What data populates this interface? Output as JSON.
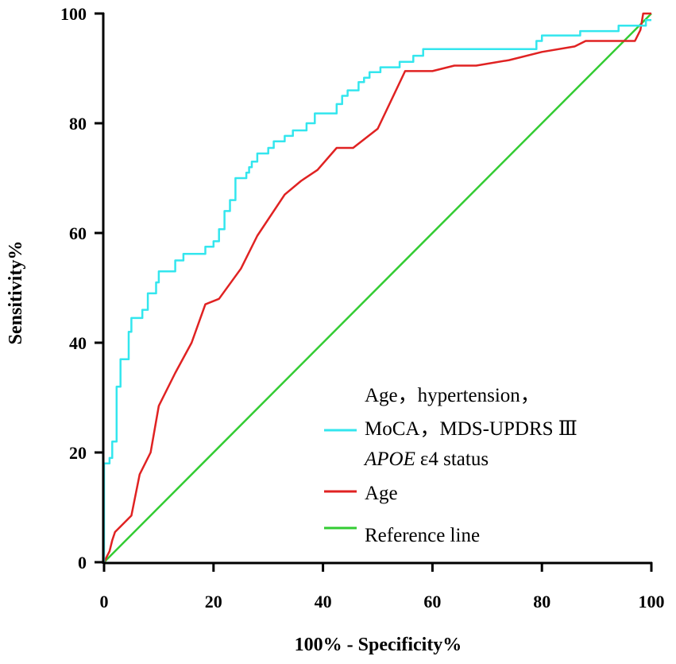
{
  "chart_data": {
    "type": "line",
    "title": "",
    "xlabel": "100% - Specificity%",
    "ylabel": "Sensitivity%",
    "xlim": [
      0,
      100
    ],
    "ylim": [
      0,
      100
    ],
    "xticks": [
      "0",
      "20",
      "40",
      "60",
      "80",
      "100"
    ],
    "yticks": [
      "0",
      "20",
      "40",
      "60",
      "80",
      "100"
    ],
    "grid": false,
    "legend_position": "bottom-right",
    "series": [
      {
        "name": "Age，hypertension，MoCA，MDS-UPDRS Ⅲ APOE ε4 status",
        "legend_lines": [
          "Age，hypertension，",
          "MoCA，MDS-UPDRS Ⅲ",
          "APOE",
          "ε4 status"
        ],
        "color": "#33e6ee",
        "points": [
          [
            0,
            0
          ],
          [
            0,
            18
          ],
          [
            1,
            18
          ],
          [
            1,
            19
          ],
          [
            1.5,
            19
          ],
          [
            1.5,
            22
          ],
          [
            2.3,
            22
          ],
          [
            2.3,
            32
          ],
          [
            3,
            32
          ],
          [
            3,
            37
          ],
          [
            4.5,
            37
          ],
          [
            4.5,
            42
          ],
          [
            5,
            42
          ],
          [
            5,
            44.5
          ],
          [
            7,
            44.5
          ],
          [
            7,
            46
          ],
          [
            8,
            46
          ],
          [
            8,
            49
          ],
          [
            9.5,
            49
          ],
          [
            9.5,
            51
          ],
          [
            10,
            51
          ],
          [
            10,
            53
          ],
          [
            13,
            53
          ],
          [
            13,
            55
          ],
          [
            14.5,
            55
          ],
          [
            14.5,
            56.2
          ],
          [
            18.5,
            56.2
          ],
          [
            18.5,
            57.5
          ],
          [
            20,
            57.5
          ],
          [
            20,
            58.5
          ],
          [
            21,
            58.5
          ],
          [
            21,
            60.7
          ],
          [
            22,
            60.7
          ],
          [
            22,
            64
          ],
          [
            23,
            64
          ],
          [
            23,
            66
          ],
          [
            24,
            66
          ],
          [
            24,
            70
          ],
          [
            26,
            70
          ],
          [
            26,
            71
          ],
          [
            26.5,
            71
          ],
          [
            26.5,
            72
          ],
          [
            27,
            72
          ],
          [
            27,
            73
          ],
          [
            28,
            73
          ],
          [
            28,
            74.5
          ],
          [
            30,
            74.5
          ],
          [
            30,
            75.5
          ],
          [
            31,
            75.5
          ],
          [
            31,
            76.7
          ],
          [
            33,
            76.7
          ],
          [
            33,
            77.7
          ],
          [
            34.5,
            77.7
          ],
          [
            34.5,
            78.7
          ],
          [
            37,
            78.7
          ],
          [
            37,
            80
          ],
          [
            38.5,
            80
          ],
          [
            38.5,
            81.8
          ],
          [
            42.5,
            81.8
          ],
          [
            42.5,
            83.5
          ],
          [
            43.5,
            83.5
          ],
          [
            43.5,
            85
          ],
          [
            44.5,
            85
          ],
          [
            44.5,
            86
          ],
          [
            46.5,
            86
          ],
          [
            46.5,
            87.5
          ],
          [
            47.5,
            87.5
          ],
          [
            47.5,
            88.3
          ],
          [
            48.5,
            88.3
          ],
          [
            48.5,
            89.3
          ],
          [
            50.5,
            89.3
          ],
          [
            50.5,
            90.2
          ],
          [
            54,
            90.2
          ],
          [
            54,
            91.2
          ],
          [
            56.5,
            91.2
          ],
          [
            56.5,
            92.3
          ],
          [
            58.3,
            92.3
          ],
          [
            58.3,
            93.5
          ],
          [
            79,
            93.5
          ],
          [
            79,
            95
          ],
          [
            80,
            95
          ],
          [
            80,
            96
          ],
          [
            87,
            96
          ],
          [
            87,
            96.8
          ],
          [
            94,
            96.8
          ],
          [
            94,
            97.8
          ],
          [
            99,
            97.8
          ],
          [
            99,
            98.8
          ],
          [
            100,
            98.8
          ]
        ]
      },
      {
        "name": "Age",
        "color": "#e02222",
        "points": [
          [
            0,
            0
          ],
          [
            0.5,
            1
          ],
          [
            1,
            2
          ],
          [
            1.5,
            4
          ],
          [
            2,
            5.5
          ],
          [
            3,
            6.5
          ],
          [
            5,
            8.5
          ],
          [
            6.5,
            16
          ],
          [
            8.5,
            20
          ],
          [
            10,
            28.5
          ],
          [
            13,
            34.5
          ],
          [
            16,
            40
          ],
          [
            18.5,
            47
          ],
          [
            21,
            48
          ],
          [
            25,
            53.5
          ],
          [
            28,
            59.5
          ],
          [
            33,
            67
          ],
          [
            36,
            69.5
          ],
          [
            39,
            71.5
          ],
          [
            42.5,
            75.5
          ],
          [
            45.5,
            75.5
          ],
          [
            50,
            79
          ],
          [
            55,
            89.5
          ],
          [
            60,
            89.5
          ],
          [
            64,
            90.5
          ],
          [
            68,
            90.5
          ],
          [
            74,
            91.5
          ],
          [
            80,
            93
          ],
          [
            86,
            94
          ],
          [
            88,
            95
          ],
          [
            97,
            95
          ],
          [
            98,
            97
          ],
          [
            98.5,
            100
          ],
          [
            100,
            100
          ]
        ]
      },
      {
        "name": "Reference line",
        "color": "#33cc33",
        "points": [
          [
            0,
            0
          ],
          [
            100,
            100
          ]
        ]
      }
    ]
  }
}
